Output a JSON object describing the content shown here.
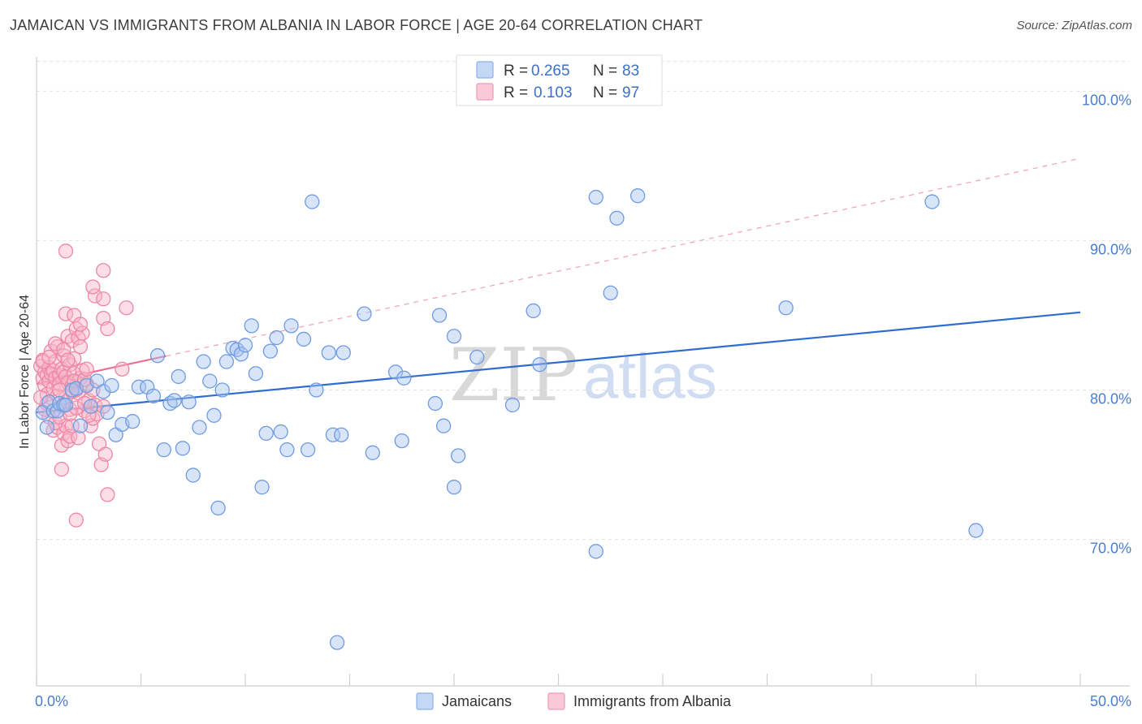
{
  "header": {
    "title": "JAMAICAN VS IMMIGRANTS FROM ALBANIA IN LABOR FORCE | AGE 20-64 CORRELATION CHART",
    "source": "Source: ZipAtlas.com"
  },
  "watermark": {
    "zip": "ZIP",
    "atlas": "atlas"
  },
  "legend": {
    "items": [
      {
        "r_label": "R =",
        "r_value": "0.265",
        "n_label": "N =",
        "n_value": "83",
        "color": "#a8c4ee"
      },
      {
        "r_label": "R =",
        "r_value": "0.103",
        "n_label": "N =",
        "n_value": "97",
        "color": "#f7b6c8"
      }
    ]
  },
  "bottom_legend": {
    "series1": "Jamaicans",
    "series2": "Immigrants from Albania"
  },
  "chart_data": {
    "type": "scatter",
    "title": "JAMAICAN VS IMMIGRANTS FROM ALBANIA IN LABOR FORCE | AGE 20-64 CORRELATION CHART",
    "xlabel": "",
    "ylabel": "In Labor Force | Age 20-64",
    "xlim": [
      0,
      50
    ],
    "ylim": [
      60.2,
      102.3
    ],
    "x_tick_labels": [
      "0.0%",
      "50.0%"
    ],
    "y_ticks": [
      70,
      80,
      90,
      100
    ],
    "y_tick_labels": [
      "70.0%",
      "80.0%",
      "90.0%",
      "100.0%"
    ],
    "grid": true,
    "series": [
      {
        "name": "Jamaicans",
        "color": "#a8c4ee",
        "stroke": "#6f9be0",
        "r": 0.265,
        "n": 83,
        "trend": {
          "x": [
            0,
            50
          ],
          "y": [
            78.5,
            85.2
          ],
          "color": "#2f6ccf",
          "style": "solid"
        },
        "points": [
          [
            0.3,
            78.5
          ],
          [
            0.6,
            79.2
          ],
          [
            0.8,
            78.6
          ],
          [
            1.0,
            78.6
          ],
          [
            1.1,
            79.1
          ],
          [
            1.3,
            79.0
          ],
          [
            1.4,
            79.0
          ],
          [
            1.7,
            80.0
          ],
          [
            1.9,
            80.1
          ],
          [
            2.1,
            77.6
          ],
          [
            2.4,
            80.3
          ],
          [
            2.6,
            78.9
          ],
          [
            2.9,
            80.6
          ],
          [
            3.2,
            79.9
          ],
          [
            3.4,
            78.5
          ],
          [
            3.6,
            80.3
          ],
          [
            3.8,
            77.0
          ],
          [
            4.1,
            77.7
          ],
          [
            4.6,
            77.9
          ],
          [
            4.9,
            80.2
          ],
          [
            5.3,
            80.2
          ],
          [
            5.6,
            79.6
          ],
          [
            5.8,
            82.3
          ],
          [
            6.1,
            76.0
          ],
          [
            6.4,
            79.1
          ],
          [
            6.6,
            79.3
          ],
          [
            6.8,
            80.9
          ],
          [
            7.0,
            76.1
          ],
          [
            7.3,
            79.2
          ],
          [
            7.5,
            74.3
          ],
          [
            7.8,
            77.5
          ],
          [
            8.0,
            81.9
          ],
          [
            8.3,
            80.6
          ],
          [
            8.5,
            78.3
          ],
          [
            8.7,
            72.1
          ],
          [
            8.9,
            80.0
          ],
          [
            9.1,
            81.9
          ],
          [
            9.4,
            82.8
          ],
          [
            9.6,
            82.7
          ],
          [
            9.8,
            82.4
          ],
          [
            10.0,
            83.0
          ],
          [
            10.3,
            84.3
          ],
          [
            10.5,
            81.1
          ],
          [
            10.8,
            73.5
          ],
          [
            11.0,
            77.1
          ],
          [
            11.2,
            82.6
          ],
          [
            11.5,
            83.5
          ],
          [
            11.7,
            77.2
          ],
          [
            12.0,
            76.0
          ],
          [
            12.2,
            84.3
          ],
          [
            12.8,
            83.4
          ],
          [
            13.0,
            76.0
          ],
          [
            13.2,
            92.6
          ],
          [
            13.4,
            80.0
          ],
          [
            14.0,
            82.5
          ],
          [
            14.2,
            77.0
          ],
          [
            14.6,
            77.0
          ],
          [
            14.7,
            82.5
          ],
          [
            15.7,
            85.1
          ],
          [
            16.1,
            75.8
          ],
          [
            17.2,
            81.2
          ],
          [
            17.6,
            80.8
          ],
          [
            17.5,
            76.6
          ],
          [
            19.1,
            79.1
          ],
          [
            19.3,
            85.0
          ],
          [
            19.5,
            77.6
          ],
          [
            20.0,
            83.6
          ],
          [
            20.2,
            75.6
          ],
          [
            20.0,
            73.5
          ],
          [
            21.1,
            82.2
          ],
          [
            22.8,
            79.0
          ],
          [
            23.8,
            85.3
          ],
          [
            24.1,
            81.7
          ],
          [
            26.8,
            92.9
          ],
          [
            26.8,
            69.2
          ],
          [
            27.5,
            86.5
          ],
          [
            27.8,
            91.5
          ],
          [
            28.8,
            93.0
          ],
          [
            35.9,
            85.5
          ],
          [
            42.9,
            92.6
          ],
          [
            45.0,
            70.6
          ],
          [
            14.4,
            63.1
          ],
          [
            0.5,
            77.5
          ]
        ]
      },
      {
        "name": "Immigrants from Albania",
        "color": "#f7b6c8",
        "stroke": "#ee86a5",
        "r": 0.103,
        "n": 97,
        "trend": {
          "x": [
            0,
            50
          ],
          "y": [
            80.4,
            95.5
          ],
          "color": "#ee6f94",
          "style": "solid-then-dashed",
          "solid_until_x": 6.2
        },
        "points": [
          [
            0.2,
            81.6
          ],
          [
            0.3,
            82.0
          ],
          [
            0.3,
            80.8
          ],
          [
            0.4,
            80.3
          ],
          [
            0.4,
            81.2
          ],
          [
            0.5,
            81.0
          ],
          [
            0.5,
            79.7
          ],
          [
            0.6,
            81.5
          ],
          [
            0.6,
            80.6
          ],
          [
            0.7,
            81.1
          ],
          [
            0.7,
            82.6
          ],
          [
            0.8,
            81.3
          ],
          [
            0.8,
            80.1
          ],
          [
            0.9,
            80.8
          ],
          [
            0.9,
            81.9
          ],
          [
            1.0,
            82.9
          ],
          [
            1.0,
            79.6
          ],
          [
            1.1,
            81.0
          ],
          [
            1.1,
            80.4
          ],
          [
            1.2,
            81.4
          ],
          [
            1.2,
            78.9
          ],
          [
            1.3,
            81.2
          ],
          [
            1.3,
            82.3
          ],
          [
            1.4,
            80.9
          ],
          [
            1.4,
            79.5
          ],
          [
            1.5,
            83.6
          ],
          [
            1.5,
            80.5
          ],
          [
            1.6,
            81.7
          ],
          [
            1.6,
            78.7
          ],
          [
            1.7,
            83.3
          ],
          [
            1.7,
            80.3
          ],
          [
            1.8,
            81.1
          ],
          [
            1.8,
            82.1
          ],
          [
            1.9,
            84.1
          ],
          [
            1.9,
            80.0
          ],
          [
            2.0,
            83.5
          ],
          [
            2.0,
            79.8
          ],
          [
            2.1,
            80.8
          ],
          [
            2.2,
            81.3
          ],
          [
            2.3,
            78.6
          ],
          [
            2.4,
            80.4
          ],
          [
            2.5,
            79.3
          ],
          [
            2.6,
            77.6
          ],
          [
            2.7,
            78.1
          ],
          [
            2.8,
            79.0
          ],
          [
            2.9,
            78.4
          ],
          [
            3.0,
            76.4
          ],
          [
            3.1,
            75.0
          ],
          [
            3.2,
            78.9
          ],
          [
            3.3,
            75.7
          ],
          [
            2.1,
            82.9
          ],
          [
            2.2,
            83.8
          ],
          [
            1.4,
            85.1
          ],
          [
            1.8,
            85.0
          ],
          [
            2.1,
            84.4
          ],
          [
            2.8,
            86.3
          ],
          [
            2.7,
            86.9
          ],
          [
            3.2,
            86.1
          ],
          [
            3.2,
            84.8
          ],
          [
            3.4,
            84.1
          ],
          [
            3.2,
            88.0
          ],
          [
            1.4,
            89.3
          ],
          [
            4.3,
            85.5
          ],
          [
            4.1,
            81.4
          ],
          [
            0.6,
            78.2
          ],
          [
            0.8,
            77.3
          ],
          [
            1.0,
            77.5
          ],
          [
            1.2,
            76.3
          ],
          [
            1.3,
            77.1
          ],
          [
            1.4,
            77.6
          ],
          [
            1.5,
            76.6
          ],
          [
            1.6,
            76.9
          ],
          [
            1.7,
            77.6
          ],
          [
            2.0,
            76.8
          ],
          [
            0.4,
            78.7
          ],
          [
            0.5,
            79.1
          ],
          [
            0.9,
            77.8
          ],
          [
            1.1,
            78.2
          ],
          [
            1.6,
            78.4
          ],
          [
            1.7,
            79.9
          ],
          [
            1.9,
            78.8
          ],
          [
            2.3,
            79.1
          ],
          [
            2.5,
            78.3
          ],
          [
            2.7,
            80.0
          ],
          [
            3.4,
            73.0
          ],
          [
            1.2,
            74.7
          ],
          [
            1.9,
            71.3
          ],
          [
            0.3,
            81.9
          ],
          [
            0.6,
            82.2
          ],
          [
            0.9,
            83.1
          ],
          [
            1.1,
            80.0
          ],
          [
            1.3,
            82.7
          ],
          [
            1.5,
            82.0
          ],
          [
            1.8,
            80.6
          ],
          [
            2.3,
            80.7
          ],
          [
            2.4,
            81.4
          ],
          [
            0.2,
            79.5
          ]
        ]
      }
    ]
  }
}
